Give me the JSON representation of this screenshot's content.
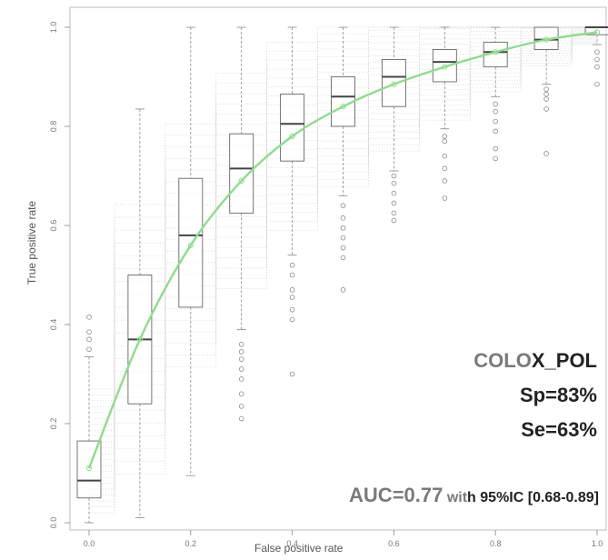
{
  "chart_data": {
    "type": "boxplot",
    "title": "",
    "xlabel": "False positive rate",
    "ylabel": "True positive rate",
    "xlim": [
      0.0,
      1.0
    ],
    "ylim": [
      0.0,
      1.0
    ],
    "xticks": [
      "0.0",
      "0.2",
      "0.4",
      "0.6",
      "0.8",
      "1.0"
    ],
    "yticks": [
      "0.0",
      "0.2",
      "0.4",
      "0.6",
      "0.8",
      "1.0"
    ],
    "grid": false,
    "boxes": [
      {
        "x": 0.0,
        "low": 0.0,
        "q1": 0.05,
        "median": 0.085,
        "q3": 0.165,
        "high": 0.335,
        "outliers": [
          0.35,
          0.37,
          0.385,
          0.415
        ]
      },
      {
        "x": 0.1,
        "low": 0.01,
        "q1": 0.24,
        "median": 0.37,
        "q3": 0.5,
        "high": 0.835,
        "outliers": []
      },
      {
        "x": 0.2,
        "low": 0.095,
        "q1": 0.435,
        "median": 0.58,
        "q3": 0.695,
        "high": 1.0,
        "outliers": []
      },
      {
        "x": 0.3,
        "low": 0.39,
        "q1": 0.625,
        "median": 0.715,
        "q3": 0.785,
        "high": 1.0,
        "outliers": [
          0.21,
          0.235,
          0.26,
          0.29,
          0.31,
          0.33,
          0.345,
          0.36
        ]
      },
      {
        "x": 0.4,
        "low": 0.54,
        "q1": 0.73,
        "median": 0.805,
        "q3": 0.865,
        "high": 1.0,
        "outliers": [
          0.3,
          0.41,
          0.43,
          0.455,
          0.47,
          0.5,
          0.52
        ]
      },
      {
        "x": 0.5,
        "low": 0.66,
        "q1": 0.8,
        "median": 0.86,
        "q3": 0.9,
        "high": 1.0,
        "outliers": [
          0.47,
          0.535,
          0.555,
          0.575,
          0.595,
          0.615,
          0.64
        ]
      },
      {
        "x": 0.6,
        "low": 0.71,
        "q1": 0.84,
        "median": 0.9,
        "q3": 0.935,
        "high": 1.0,
        "outliers": [
          0.61,
          0.625,
          0.645,
          0.665,
          0.685,
          0.7
        ]
      },
      {
        "x": 0.7,
        "low": 0.795,
        "q1": 0.89,
        "median": 0.93,
        "q3": 0.955,
        "high": 1.0,
        "outliers": [
          0.655,
          0.69,
          0.715,
          0.74,
          0.77,
          0.78
        ]
      },
      {
        "x": 0.8,
        "low": 0.86,
        "q1": 0.92,
        "median": 0.95,
        "q3": 0.97,
        "high": 1.0,
        "outliers": [
          0.735,
          0.755,
          0.79,
          0.81,
          0.83,
          0.845
        ]
      },
      {
        "x": 0.9,
        "low": 0.885,
        "q1": 0.955,
        "median": 0.975,
        "q3": 1.0,
        "high": 1.0,
        "outliers": [
          0.745,
          0.835,
          0.855,
          0.865,
          0.875
        ]
      },
      {
        "x": 1.0,
        "low": 0.965,
        "q1": 0.985,
        "median": 1.0,
        "q3": 1.0,
        "high": 1.0,
        "outliers": [
          0.885,
          0.92,
          0.935,
          0.95
        ]
      }
    ],
    "curve": {
      "x": [
        0.0,
        0.1,
        0.2,
        0.3,
        0.4,
        0.5,
        0.6,
        0.7,
        0.8,
        0.9,
        1.0
      ],
      "y": [
        0.11,
        0.37,
        0.56,
        0.69,
        0.78,
        0.84,
        0.885,
        0.92,
        0.95,
        0.975,
        0.99
      ]
    },
    "colors": {
      "curve": "#8fdc8f",
      "box": "#666666",
      "background_lines": "#cfcfcf"
    }
  },
  "annotations": {
    "model_part1": "COLO",
    "model_part2": "X_POL",
    "sp": "Sp=83%",
    "se": "Se=63%",
    "auc_main": "AUC=0.77",
    "auc_with": " wit",
    "auc_ci": "h 95%IC [0.68-0.89]"
  }
}
